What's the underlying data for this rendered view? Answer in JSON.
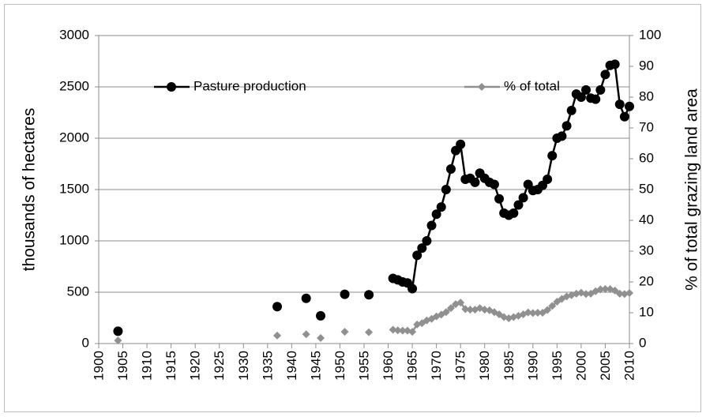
{
  "chart_data": {
    "type": "line",
    "y_label": "thousands of hectares",
    "y2_label": "% of total grazing land area",
    "x": [
      1904,
      1920,
      1937,
      1940,
      1943,
      1945,
      1946,
      1948,
      1951,
      1953,
      1956,
      1958,
      1961,
      1962,
      1963,
      1964,
      1965,
      1966,
      1967,
      1968,
      1969,
      1970,
      1971,
      1972,
      1973,
      1974,
      1975,
      1976,
      1977,
      1978,
      1979,
      1980,
      1981,
      1982,
      1983,
      1984,
      1985,
      1986,
      1987,
      1988,
      1989,
      1990,
      1991,
      1992,
      1993,
      1994,
      1995,
      1996,
      1997,
      1998,
      1999,
      2000,
      2001,
      2002,
      2003,
      2004,
      2005,
      2006,
      2007,
      2008,
      2009,
      2010
    ],
    "series": [
      {
        "name": "Pasture production",
        "color": "#000000",
        "marker": "circle",
        "values": [
          120,
          null,
          360,
          null,
          440,
          null,
          270,
          null,
          480,
          null,
          475,
          null,
          635,
          620,
          600,
          590,
          535,
          860,
          930,
          1000,
          1150,
          1260,
          1330,
          1500,
          1700,
          1880,
          1940,
          1600,
          1610,
          1570,
          1660,
          1610,
          1570,
          1550,
          1410,
          1270,
          1250,
          1270,
          1350,
          1420,
          1550,
          1490,
          1500,
          1540,
          1600,
          1830,
          2000,
          2020,
          2120,
          2270,
          2430,
          2400,
          2470,
          2390,
          2380,
          2470,
          2620,
          2710,
          2720,
          2330,
          2210,
          2310
        ]
      },
      {
        "name": "% of total",
        "color": "#909090",
        "marker": "diamond",
        "axis": "y2",
        "values": [
          1,
          null,
          2.6,
          null,
          3,
          null,
          1.8,
          null,
          3.8,
          null,
          3.7,
          null,
          4.5,
          4.3,
          4.2,
          4.2,
          3.8,
          6.2,
          6.6,
          7.5,
          8,
          8.8,
          9.4,
          10.2,
          11.5,
          12.8,
          13.3,
          11.2,
          11,
          11,
          11.5,
          11,
          10.8,
          10.2,
          9.5,
          8.6,
          8.2,
          8.6,
          9,
          9.5,
          10.1,
          9.9,
          10,
          10,
          10.9,
          12.2,
          13.6,
          14.5,
          15.3,
          15.7,
          16.2,
          16.5,
          16.1,
          16.2,
          17,
          17.6,
          17.7,
          17.7,
          17.2,
          16.2,
          16.1,
          16.4
        ]
      }
    ],
    "xlim": [
      1900,
      2010
    ],
    "xticks": [
      1900,
      1905,
      1910,
      1915,
      1920,
      1925,
      1930,
      1935,
      1940,
      1945,
      1950,
      1955,
      1960,
      1965,
      1970,
      1975,
      1980,
      1985,
      1990,
      1995,
      2000,
      2005,
      2010
    ],
    "ylim": [
      0,
      3000
    ],
    "yticks": [
      0,
      500,
      1000,
      1500,
      2000,
      2500,
      3000
    ],
    "y2lim": [
      0,
      100
    ],
    "y2ticks": [
      0,
      10,
      20,
      30,
      40,
      50,
      60,
      70,
      80,
      90,
      100
    ],
    "grid": true
  }
}
